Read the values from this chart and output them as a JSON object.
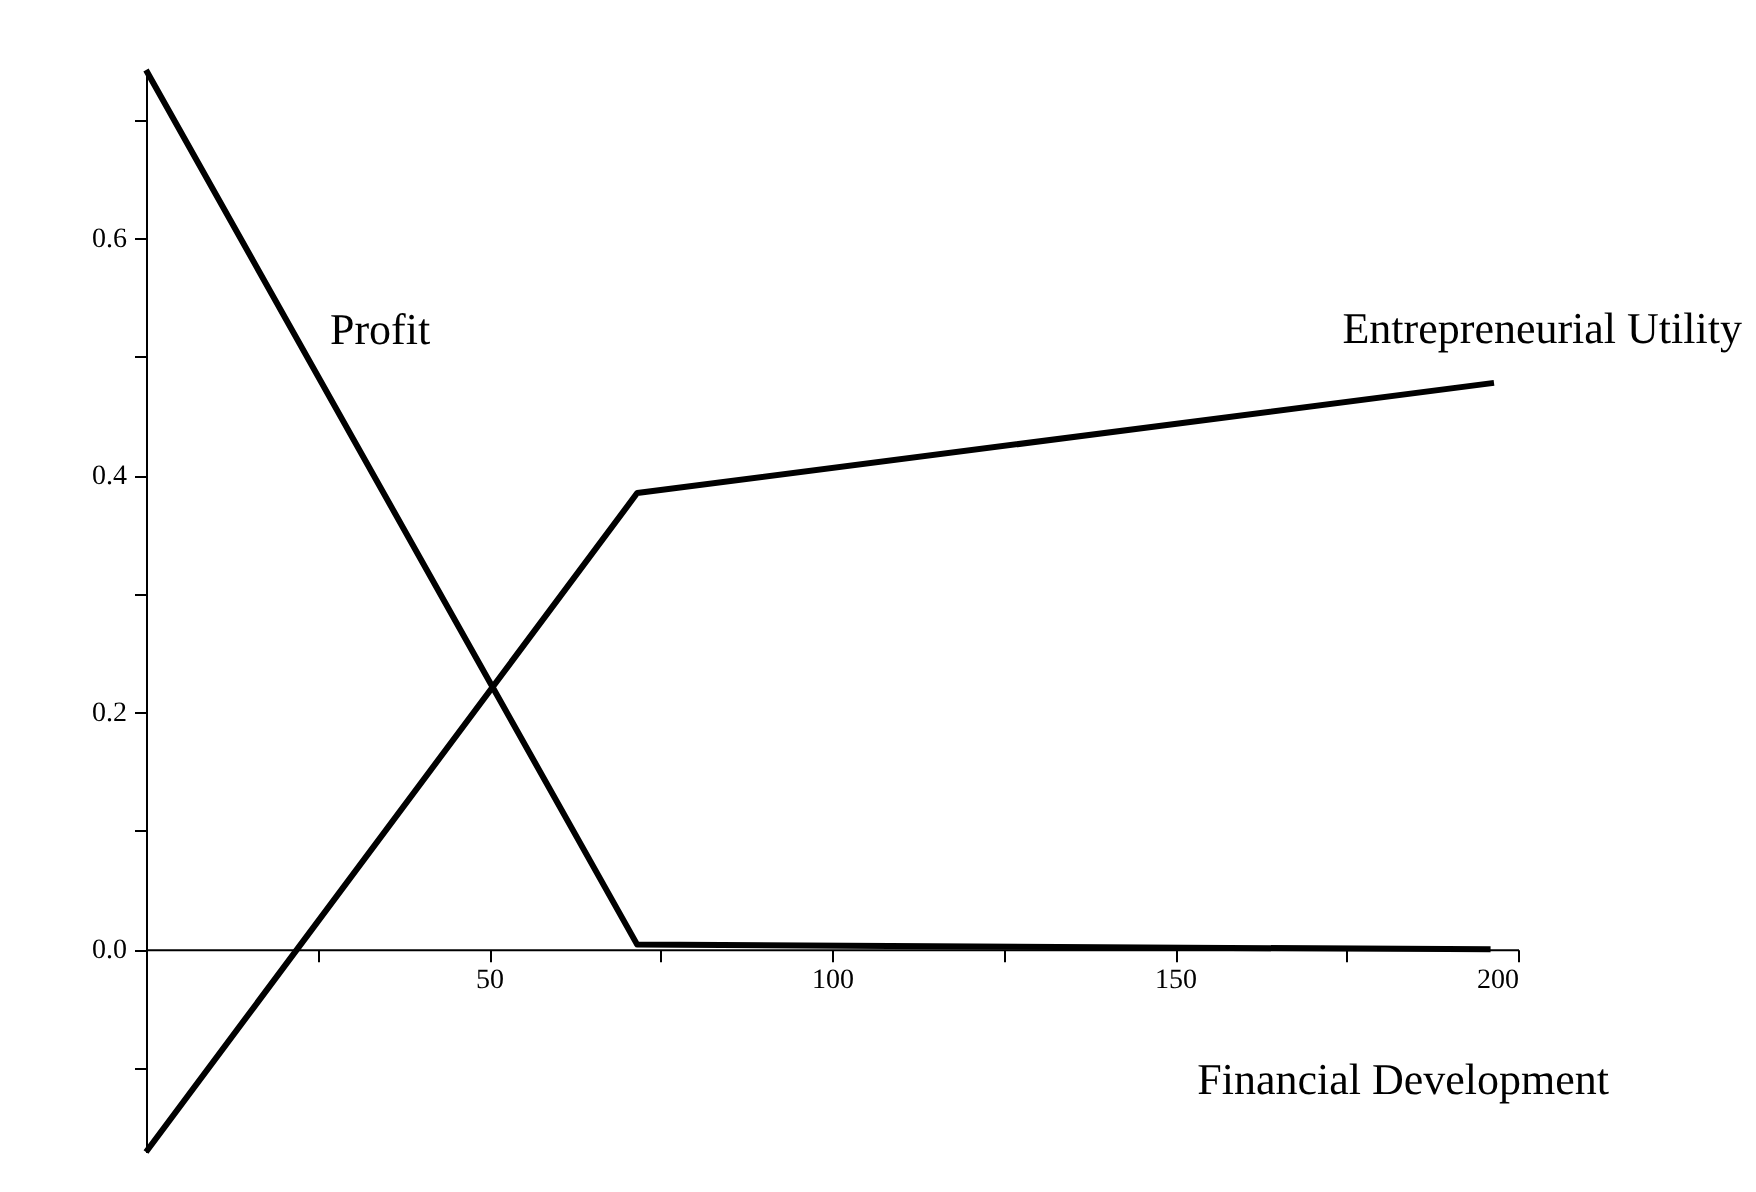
{
  "chart_data": {
    "type": "line",
    "xlabel": "Financial Development",
    "xlim": [
      0,
      200
    ],
    "ylim": [
      -0.171,
      0.742
    ],
    "xticks": [
      {
        "value": 25,
        "label": null
      },
      50,
      {
        "value": 75,
        "label": null
      },
      100,
      {
        "value": 125,
        "label": null
      },
      150,
      {
        "value": 175,
        "label": null
      },
      200
    ],
    "yticks": [
      {
        "value": -0.1,
        "label": null
      },
      {
        "value": 0,
        "label": "0.0"
      },
      {
        "value": 0.1,
        "label": null
      },
      {
        "value": 0.2,
        "label": "0.2"
      },
      {
        "value": 0.3,
        "label": null
      },
      {
        "value": 0.4,
        "label": "0.4"
      },
      {
        "value": 0.5,
        "label": null
      },
      {
        "value": 0.6,
        "label": "0.6"
      },
      {
        "value": 0.7,
        "label": null
      }
    ],
    "grid": false,
    "legend": false,
    "marker": "none",
    "line_style": "solid",
    "series": [
      {
        "name": "Profit",
        "color": "#000000",
        "x": [
          0,
          71.6,
          196
        ],
        "values": [
          0.742,
          0.004,
          0
        ]
      },
      {
        "name": "Entrepreneurial Utility",
        "color": "#000000",
        "x": [
          0,
          71.6,
          196.5
        ],
        "values": [
          -0.171,
          0.385,
          0.478
        ]
      }
    ]
  }
}
